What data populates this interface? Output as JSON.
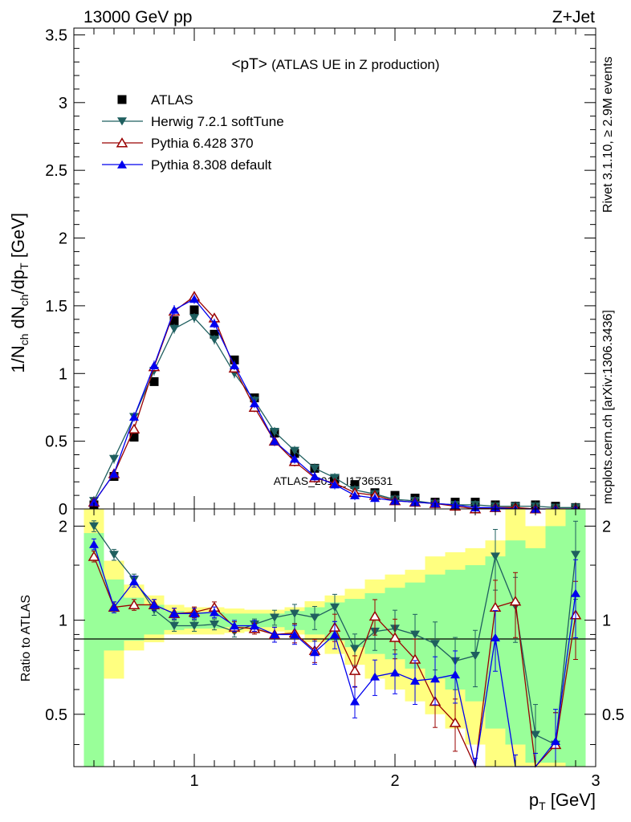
{
  "header": {
    "left": "13000 GeV pp",
    "right": "Z+Jet"
  },
  "side_text": {
    "rivet": "Rivet 3.1.10, ≥ 2.9M events",
    "mcplots": "mcplots.cern.ch [arXiv:1306.3436]"
  },
  "watermark": "ATLAS_2019_I1736531",
  "colors": {
    "atlas": "#000000",
    "herwig": "#1f5f5f",
    "pythia6": "#990000",
    "pythia8": "#0000ee",
    "band_yellow": "#ffff80",
    "band_green": "#99ff99"
  },
  "chart_data": [
    {
      "type": "scatter",
      "panel": "main",
      "title": "<pT>",
      "subtitle": "(ATLAS UE in Z production)",
      "ylabel": "1/N_ch dN_ch/dp_T [GeV]",
      "xlim": [
        0.4,
        3.0
      ],
      "ylim": [
        0,
        3.55
      ],
      "yticks": [
        "0",
        "0.5",
        "1",
        "1.5",
        "2",
        "2.5",
        "3",
        "3.5"
      ],
      "x": [
        0.5,
        0.6,
        0.7,
        0.8,
        0.9,
        1.0,
        1.1,
        1.2,
        1.3,
        1.4,
        1.5,
        1.6,
        1.7,
        1.8,
        1.9,
        2.0,
        2.1,
        2.2,
        2.3,
        2.4,
        2.5,
        2.6,
        2.7,
        2.8,
        2.9
      ],
      "legend_position": "top-left",
      "series": [
        {
          "name": "ATLAS",
          "marker": "square",
          "values": [
            0.03,
            0.24,
            0.53,
            0.94,
            1.39,
            1.47,
            1.29,
            1.1,
            0.82,
            0.56,
            0.41,
            0.3,
            0.22,
            0.18,
            0.12,
            0.1,
            0.08,
            0.05,
            0.05,
            0.05,
            0.03,
            0.02,
            0.03,
            0.02,
            0.01
          ]
        },
        {
          "name": "Herwig 7.2.1 softTune",
          "marker": "triangle-down",
          "values": [
            0.06,
            0.37,
            0.68,
            1.02,
            1.33,
            1.41,
            1.25,
            1.0,
            0.8,
            0.57,
            0.43,
            0.3,
            0.23,
            0.14,
            0.11,
            0.07,
            0.06,
            0.04,
            0.03,
            0.03,
            0.02,
            0.02,
            0.02,
            0.01,
            0.01
          ]
        },
        {
          "name": "Pythia 6.428 370",
          "marker": "triangle-up-open",
          "values": [
            0.05,
            0.26,
            0.59,
            1.05,
            1.46,
            1.57,
            1.41,
            1.04,
            0.75,
            0.5,
            0.35,
            0.23,
            0.19,
            0.12,
            0.1,
            0.06,
            0.05,
            0.04,
            0.02,
            0.0,
            0.01,
            0.01,
            0.0,
            0.0,
            0.0
          ]
        },
        {
          "name": "Pythia 8.308 default",
          "marker": "triangle-up",
          "values": [
            0.05,
            0.26,
            0.68,
            1.06,
            1.47,
            1.55,
            1.37,
            1.06,
            0.78,
            0.5,
            0.37,
            0.24,
            0.18,
            0.1,
            0.08,
            0.06,
            0.05,
            0.04,
            0.03,
            0.01,
            0.01,
            0.0,
            0.0,
            0.0,
            0.0
          ]
        }
      ]
    },
    {
      "type": "line",
      "panel": "ratio",
      "ylabel": "Ratio to ATLAS",
      "xlabel": "p_T [GeV]",
      "xlim": [
        0.4,
        3.0
      ],
      "ylim": [
        0.34,
        2.27
      ],
      "reference_line": 1,
      "xticks": [
        "1",
        "2",
        "3"
      ],
      "yticks": [
        "0.5",
        "1",
        "2"
      ],
      "x": [
        0.5,
        0.6,
        0.7,
        0.8,
        0.9,
        1.0,
        1.1,
        1.2,
        1.3,
        1.4,
        1.5,
        1.6,
        1.7,
        1.8,
        1.9,
        2.0,
        2.1,
        2.2,
        2.3,
        2.4,
        2.5,
        2.6,
        2.7,
        2.8,
        2.9
      ],
      "uncertainty_bands": {
        "yellow_low": [
          0.3,
          0.65,
          0.8,
          0.85,
          0.9,
          0.9,
          0.9,
          0.91,
          0.92,
          0.92,
          0.9,
          0.85,
          0.78,
          0.72,
          0.65,
          0.6,
          0.55,
          0.5,
          0.45,
          0.4,
          0.3,
          0.3,
          0.3,
          0.3,
          0.3
        ],
        "yellow_high": [
          2.3,
          1.55,
          1.3,
          1.2,
          1.12,
          1.1,
          1.1,
          1.09,
          1.08,
          1.08,
          1.1,
          1.15,
          1.2,
          1.26,
          1.35,
          1.4,
          1.45,
          1.6,
          1.65,
          1.7,
          1.8,
          2.3,
          2.0,
          2.3,
          2.3
        ],
        "green_low": [
          0.3,
          0.8,
          0.86,
          0.9,
          0.93,
          0.94,
          0.94,
          0.95,
          0.95,
          0.95,
          0.93,
          0.9,
          0.86,
          0.82,
          0.78,
          0.75,
          0.7,
          0.65,
          0.6,
          0.55,
          0.45,
          0.4,
          0.35,
          0.35,
          0.3
        ],
        "green_high": [
          1.9,
          1.35,
          1.18,
          1.12,
          1.07,
          1.06,
          1.06,
          1.05,
          1.05,
          1.05,
          1.07,
          1.1,
          1.14,
          1.17,
          1.22,
          1.27,
          1.32,
          1.4,
          1.45,
          1.5,
          1.6,
          1.8,
          1.7,
          2.0,
          2.3
        ]
      },
      "series": [
        {
          "name": "Herwig 7.2.1 softTune",
          "values": [
            2.0,
            1.62,
            1.35,
            1.08,
            0.96,
            0.96,
            0.97,
            0.92,
            0.97,
            1.02,
            1.05,
            1.02,
            1.1,
            0.81,
            0.92,
            0.94,
            0.9,
            0.84,
            0.74,
            0.77,
            1.6,
            1.11,
            0.43,
            0.4,
            1.62
          ]
        },
        {
          "name": "Pythia 6.428 370",
          "values": [
            1.6,
            1.1,
            1.12,
            1.12,
            1.05,
            1.06,
            1.1,
            0.95,
            0.94,
            0.9,
            0.91,
            0.8,
            0.95,
            0.69,
            1.03,
            0.88,
            0.75,
            0.55,
            0.47,
            0.3,
            1.1,
            1.15,
            0.3,
            0.4,
            1.04
          ]
        },
        {
          "name": "Pythia 8.308 default",
          "values": [
            1.75,
            1.1,
            1.33,
            1.12,
            1.05,
            1.05,
            1.06,
            0.96,
            0.96,
            0.9,
            0.9,
            0.79,
            0.9,
            0.55,
            0.66,
            0.68,
            0.64,
            0.65,
            0.67,
            0.3,
            0.88,
            0.3,
            0.3,
            0.41,
            1.22
          ]
        }
      ]
    }
  ]
}
